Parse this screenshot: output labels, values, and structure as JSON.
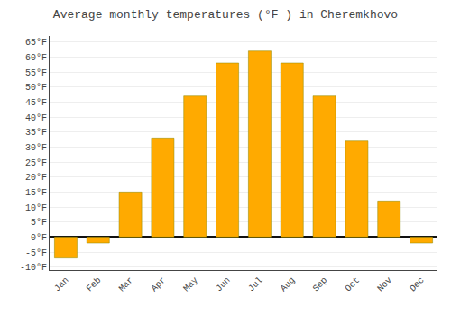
{
  "chart_data": {
    "type": "bar",
    "title": "Average monthly temperatures (°F ) in Cheremkhovo",
    "categories": [
      "Jan",
      "Feb",
      "Mar",
      "Apr",
      "May",
      "Jun",
      "Jul",
      "Aug",
      "Sep",
      "Oct",
      "Nov",
      "Dec"
    ],
    "values": [
      -7,
      -2,
      15,
      33,
      47,
      58,
      62,
      58,
      47,
      32,
      12,
      -2
    ],
    "color": "#FFAA00",
    "ylim": [
      -11,
      67
    ],
    "yticks": [
      {
        "value": -10,
        "label": "-10°F"
      },
      {
        "value": -5,
        "label": "-5°F"
      },
      {
        "value": 0,
        "label": "0°F"
      },
      {
        "value": 5,
        "label": "5°F"
      },
      {
        "value": 10,
        "label": "10°F"
      },
      {
        "value": 15,
        "label": "15°F"
      },
      {
        "value": 20,
        "label": "20°F"
      },
      {
        "value": 25,
        "label": "25°F"
      },
      {
        "value": 30,
        "label": "30°F"
      },
      {
        "value": 35,
        "label": "35°F"
      },
      {
        "value": 40,
        "label": "40°F"
      },
      {
        "value": 45,
        "label": "45°F"
      },
      {
        "value": 50,
        "label": "50°F"
      },
      {
        "value": 55,
        "label": "55°F"
      },
      {
        "value": 60,
        "label": "60°F"
      },
      {
        "value": 65,
        "label": "65°F"
      }
    ],
    "grid": true
  }
}
